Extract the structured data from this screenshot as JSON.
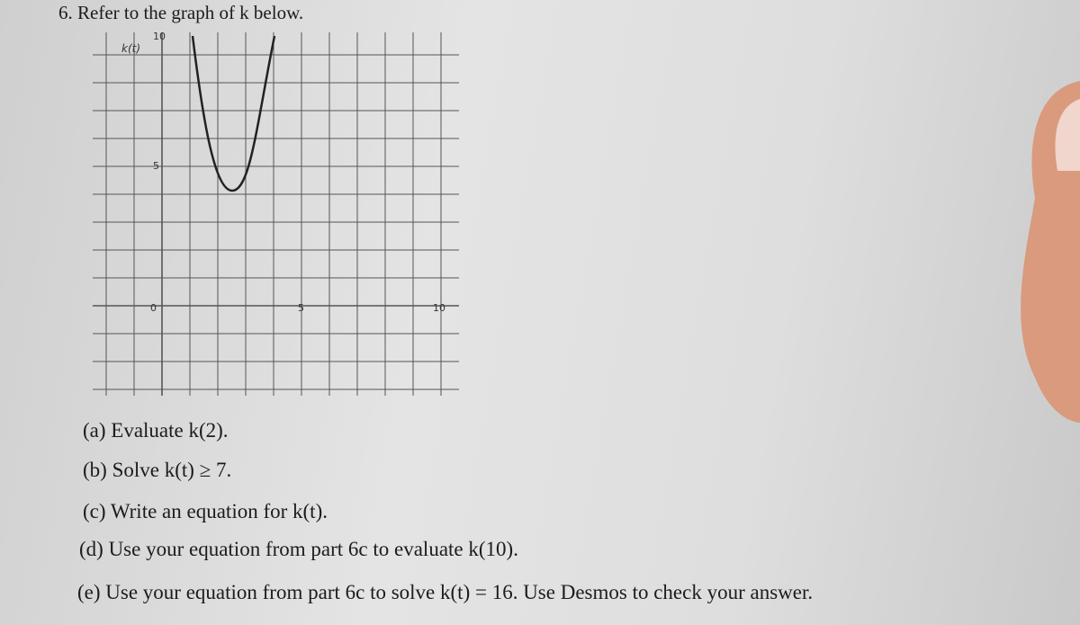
{
  "problem": {
    "title": "6. Refer to the graph of k below."
  },
  "graph": {
    "y_label": "k(t)",
    "y_tick_labels": [
      "10",
      "5"
    ],
    "origin_label": "0",
    "x_tick_labels": [
      "5",
      "10"
    ]
  },
  "questions": [
    "(a) Evaluate k(2).",
    "(b) Solve k(t) ≥ 7.",
    "(c) Write an equation for k(t).",
    "(d) Use your equation from part 6c to evaluate k(10).",
    "(e) Use your equation from part 6c to solve k(t) = 16. Use Desmos to check your answer."
  ]
}
